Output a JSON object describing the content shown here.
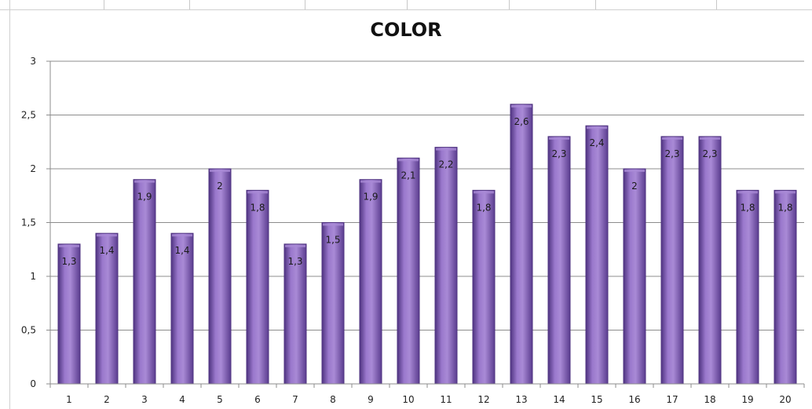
{
  "chart_data": {
    "type": "bar",
    "title": "COLOR",
    "xlabel": "",
    "ylabel": "",
    "categories": [
      "1",
      "2",
      "3",
      "4",
      "5",
      "6",
      "7",
      "8",
      "9",
      "10",
      "11",
      "12",
      "13",
      "14",
      "15",
      "16",
      "17",
      "18",
      "19",
      "20"
    ],
    "values": [
      1.3,
      1.4,
      1.9,
      1.4,
      2,
      1.8,
      1.3,
      1.5,
      1.9,
      2.1,
      2.2,
      1.8,
      2.6,
      2.3,
      2.4,
      2,
      2.3,
      2.3,
      1.8,
      1.8
    ],
    "data_labels": [
      "1,3",
      "1,4",
      "1,9",
      "1,4",
      "2",
      "1,8",
      "1,3",
      "1,5",
      "1,9",
      "2,1",
      "2,2",
      "1,8",
      "2,6",
      "2,3",
      "2,4",
      "2",
      "2,3",
      "2,3",
      "1,8",
      "1,8"
    ],
    "y_ticks": [
      0,
      0.5,
      1,
      1.5,
      2,
      2.5,
      3
    ],
    "y_tick_labels": [
      "0",
      "0,5",
      "1",
      "1,5",
      "2",
      "2,5",
      "3"
    ],
    "ylim": [
      0,
      3
    ],
    "grid": true,
    "legend": "none",
    "colors": {
      "bar_light": "#a98ad6",
      "bar_mid": "#7d5bb5",
      "bar_dark": "#4f3380",
      "grid": "#8c8c8c",
      "axis": "#8c8c8c"
    }
  }
}
